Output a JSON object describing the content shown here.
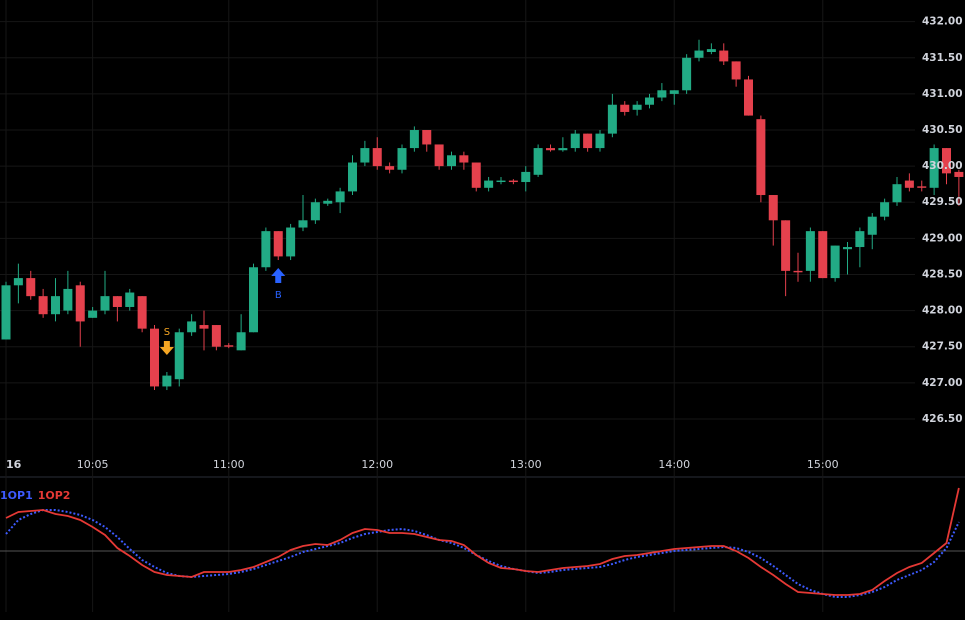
{
  "chart_data": [
    {
      "type": "candlestick",
      "categories": [
        "16",
        null,
        null,
        null,
        null,
        null,
        null,
        "10:05",
        null,
        null,
        null,
        null,
        null,
        null,
        null,
        null,
        null,
        null,
        "11:00",
        null,
        null,
        null,
        null,
        null,
        null,
        null,
        null,
        null,
        null,
        null,
        "12:00",
        null,
        null,
        null,
        null,
        null,
        null,
        null,
        null,
        null,
        null,
        null,
        "13:00",
        null,
        null,
        null,
        null,
        null,
        null,
        null,
        null,
        null,
        null,
        null,
        "14:00",
        null,
        null,
        null,
        null,
        null,
        null,
        null,
        null,
        null,
        null,
        null,
        "15:00",
        null,
        null,
        null,
        null,
        null,
        null,
        null,
        null,
        null,
        null,
        null
      ],
      "open": [
        427.6,
        428.35,
        428.45,
        428.2,
        427.95,
        428.0,
        428.35,
        427.9,
        428.0,
        428.2,
        428.05,
        428.2,
        427.75,
        426.95,
        427.05,
        427.7,
        427.8,
        427.8,
        427.52,
        427.45,
        427.7,
        428.6,
        429.1,
        428.75,
        429.15,
        429.25,
        429.48,
        429.5,
        429.65,
        430.05,
        430.25,
        430.0,
        429.95,
        430.25,
        430.5,
        430.3,
        430.0,
        430.15,
        430.05,
        429.7,
        429.78,
        429.8,
        429.78,
        429.88,
        430.25,
        430.22,
        430.25,
        430.45,
        430.25,
        430.45,
        430.85,
        430.78,
        430.85,
        430.95,
        431.0,
        431.05,
        431.5,
        431.58,
        431.6,
        431.45,
        431.2,
        430.65,
        429.6,
        429.25,
        428.55,
        428.55,
        429.1,
        428.45,
        428.85,
        428.88,
        429.05,
        429.3,
        429.5,
        429.8,
        429.72,
        429.7,
        430.25,
        429.92
      ],
      "high": [
        428.4,
        428.65,
        428.55,
        428.3,
        428.45,
        428.55,
        428.4,
        428.05,
        428.55,
        428.2,
        428.3,
        428.2,
        427.8,
        427.15,
        427.75,
        427.95,
        428.0,
        427.8,
        427.55,
        427.95,
        428.65,
        429.15,
        429.1,
        429.2,
        429.6,
        429.55,
        429.55,
        429.7,
        430.15,
        430.35,
        430.4,
        430.05,
        430.3,
        430.55,
        430.5,
        430.3,
        430.2,
        430.2,
        430.05,
        429.85,
        429.85,
        429.82,
        430.0,
        430.3,
        430.3,
        430.4,
        430.5,
        430.45,
        430.5,
        431.0,
        430.9,
        430.9,
        431.0,
        431.15,
        431.05,
        431.55,
        431.75,
        431.7,
        431.7,
        431.45,
        431.25,
        430.7,
        429.6,
        429.25,
        428.8,
        429.15,
        429.1,
        428.9,
        428.95,
        429.15,
        429.35,
        429.55,
        429.85,
        429.9,
        429.8,
        430.3,
        430.25,
        429.95
      ],
      "low": [
        427.6,
        428.1,
        428.15,
        427.9,
        427.85,
        427.95,
        427.5,
        427.9,
        427.95,
        427.85,
        428.0,
        427.7,
        426.9,
        426.9,
        426.95,
        427.65,
        427.45,
        427.45,
        427.48,
        427.45,
        427.7,
        428.55,
        428.7,
        428.7,
        429.1,
        429.2,
        429.45,
        429.35,
        429.6,
        430.0,
        429.95,
        429.9,
        429.9,
        430.2,
        430.2,
        429.95,
        429.95,
        429.95,
        429.65,
        429.65,
        429.75,
        429.75,
        429.65,
        429.85,
        430.2,
        430.2,
        430.2,
        430.2,
        430.2,
        430.4,
        430.7,
        430.7,
        430.8,
        430.9,
        430.85,
        431.0,
        431.45,
        431.55,
        431.4,
        431.1,
        430.7,
        429.5,
        428.9,
        428.2,
        428.4,
        428.4,
        428.45,
        428.4,
        428.5,
        428.6,
        428.85,
        429.25,
        429.45,
        429.65,
        429.65,
        429.6,
        429.75,
        429.45
      ],
      "close": [
        428.35,
        428.45,
        428.2,
        427.95,
        428.2,
        428.3,
        427.85,
        428.0,
        428.2,
        428.05,
        428.25,
        427.75,
        426.95,
        427.1,
        427.7,
        427.85,
        427.75,
        427.5,
        427.5,
        427.7,
        428.6,
        429.1,
        428.75,
        429.15,
        429.25,
        429.5,
        429.52,
        429.65,
        430.05,
        430.25,
        430.0,
        429.95,
        430.25,
        430.5,
        430.3,
        430.0,
        430.15,
        430.05,
        429.7,
        429.8,
        429.8,
        429.78,
        429.92,
        430.25,
        430.22,
        430.25,
        430.45,
        430.25,
        430.45,
        430.85,
        430.75,
        430.85,
        430.95,
        431.05,
        431.05,
        431.5,
        431.6,
        431.62,
        431.45,
        431.2,
        430.7,
        429.6,
        429.25,
        428.55,
        428.53,
        429.1,
        428.45,
        428.9,
        428.88,
        429.1,
        429.3,
        429.5,
        429.75,
        429.7,
        429.7,
        430.25,
        429.9,
        429.85
      ],
      "signals": [
        null,
        null,
        null,
        null,
        null,
        null,
        null,
        null,
        null,
        null,
        null,
        null,
        null,
        {
          "label": "S",
          "color": "#f5a623",
          "direction": "down"
        },
        null,
        null,
        null,
        null,
        null,
        null,
        null,
        null,
        {
          "label": "B",
          "color": "#2962ff",
          "direction": "up"
        },
        null,
        null,
        null,
        null,
        null,
        null,
        null,
        null,
        null,
        null,
        null,
        null,
        null,
        null,
        null,
        null,
        null,
        null,
        null,
        null,
        null,
        null,
        null,
        null,
        null,
        null,
        null,
        null,
        null,
        null,
        null,
        null,
        null,
        null,
        null,
        null,
        null,
        null,
        null,
        null,
        null,
        null,
        null,
        null,
        null,
        null,
        null,
        null,
        null,
        null,
        null,
        null,
        null,
        null,
        null,
        null,
        null,
        null,
        null
      ],
      "up_color": "#22ab85",
      "down_color": "#e5414d",
      "ylim": [
        426.07,
        432.3
      ],
      "yticks": [
        {
          "value": 432,
          "label": "432.00"
        },
        {
          "value": 431.5,
          "label": "431.50"
        },
        {
          "value": 431,
          "label": "431.00"
        },
        {
          "value": 430.5,
          "label": "430.50"
        },
        {
          "value": 430,
          "label": "430.00"
        },
        {
          "value": 429.5,
          "label": "429.50"
        },
        {
          "value": 429,
          "label": "429.00"
        },
        {
          "value": 428.5,
          "label": "428.50"
        },
        {
          "value": 428,
          "label": "428.00"
        },
        {
          "value": 427.5,
          "label": "427.50"
        },
        {
          "value": 427,
          "label": "427.00"
        },
        {
          "value": 426.5,
          "label": "426.50"
        }
      ],
      "grid": true
    },
    {
      "type": "line",
      "series": [
        {
          "name": "1OP1",
          "color": "#3d5afe",
          "dash": true,
          "values": [
            1.7,
            3.1,
            3.7,
            4.1,
            4.1,
            3.9,
            3.6,
            3.1,
            2.4,
            1.4,
            0.2,
            -0.9,
            -1.6,
            -2.2,
            -2.5,
            -2.6,
            -2.5,
            -2.4,
            -2.3,
            -2.1,
            -1.8,
            -1.4,
            -1.0,
            -0.6,
            -0.1,
            0.2,
            0.5,
            0.8,
            1.3,
            1.7,
            1.9,
            2.1,
            2.2,
            2.0,
            1.6,
            1.1,
            0.8,
            0.3,
            -0.4,
            -1.0,
            -1.5,
            -1.8,
            -2.0,
            -2.2,
            -2.1,
            -1.9,
            -1.8,
            -1.7,
            -1.6,
            -1.3,
            -0.9,
            -0.6,
            -0.4,
            -0.2,
            0.0,
            0.1,
            0.2,
            0.3,
            0.4,
            0.3,
            -0.1,
            -0.7,
            -1.5,
            -2.4,
            -3.3,
            -3.9,
            -4.3,
            -4.6,
            -4.6,
            -4.4,
            -4.1,
            -3.6,
            -2.9,
            -2.4,
            -1.9,
            -1.1,
            0.3,
            2.9
          ]
        },
        {
          "name": "1OP2",
          "color": "#e53935",
          "dash": false,
          "values": [
            3.3,
            3.9,
            4.0,
            4.1,
            3.7,
            3.5,
            3.1,
            2.4,
            1.6,
            0.3,
            -0.5,
            -1.4,
            -2.1,
            -2.4,
            -2.5,
            -2.6,
            -2.1,
            -2.1,
            -2.1,
            -1.9,
            -1.6,
            -1.1,
            -0.6,
            0.1,
            0.5,
            0.7,
            0.6,
            1.1,
            1.8,
            2.2,
            2.1,
            1.8,
            1.8,
            1.7,
            1.4,
            1.1,
            1.0,
            0.6,
            -0.4,
            -1.2,
            -1.7,
            -1.8,
            -2.0,
            -2.1,
            -1.9,
            -1.7,
            -1.6,
            -1.5,
            -1.3,
            -0.8,
            -0.5,
            -0.4,
            -0.2,
            0.0,
            0.2,
            0.3,
            0.4,
            0.5,
            0.5,
            0.0,
            -0.7,
            -1.6,
            -2.4,
            -3.3,
            -4.1,
            -4.2,
            -4.3,
            -4.4,
            -4.4,
            -4.3,
            -3.9,
            -3.0,
            -2.2,
            -1.6,
            -1.2,
            -0.2,
            0.8,
            6.3
          ]
        }
      ],
      "ylim": [
        -6.1,
        7.3
      ],
      "hline": 0
    }
  ]
}
